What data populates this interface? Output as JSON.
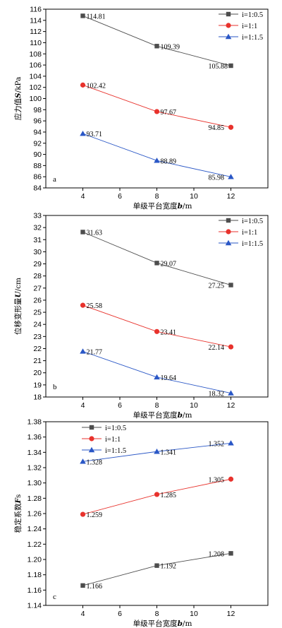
{
  "colors": {
    "s1": "#4d4d4d",
    "s2": "#e8322c",
    "s3": "#2a57c6"
  },
  "chart_data": [
    {
      "type": "line",
      "panel": "a",
      "xlabel": "单级平台宽度b/m",
      "ylabel": "应力值S/kPa",
      "x": [
        4,
        8,
        12
      ],
      "xlim": [
        2,
        14
      ],
      "xticks": [
        4,
        6,
        8,
        10,
        12
      ],
      "ylim": [
        84,
        116
      ],
      "yticks": [
        84,
        86,
        88,
        90,
        92,
        94,
        96,
        98,
        100,
        102,
        104,
        106,
        108,
        110,
        112,
        114,
        116
      ],
      "ytick_decimals": 0,
      "legend_position": "top-right",
      "series": [
        {
          "name": "i=1:0.5",
          "values": [
            114.81,
            109.39,
            105.88
          ],
          "labels": [
            "114.81",
            "109.39",
            "105.88"
          ],
          "marker": "square"
        },
        {
          "name": "i=1:1",
          "values": [
            102.42,
            97.67,
            94.85
          ],
          "labels": [
            "102.42",
            "97.67",
            "94.85"
          ],
          "marker": "circle"
        },
        {
          "name": "i=1:1.5",
          "values": [
            93.71,
            88.89,
            85.98
          ],
          "labels": [
            "93.71",
            "88.89",
            "85.98"
          ],
          "marker": "triangle"
        }
      ]
    },
    {
      "type": "line",
      "panel": "b",
      "xlabel": "单级平台宽度b/m",
      "ylabel": "位移变形量U/cm",
      "x": [
        4,
        8,
        12
      ],
      "xlim": [
        2,
        14
      ],
      "xticks": [
        4,
        6,
        8,
        10,
        12
      ],
      "ylim": [
        18,
        33
      ],
      "yticks": [
        18,
        19,
        20,
        21,
        22,
        23,
        24,
        25,
        26,
        27,
        28,
        29,
        30,
        31,
        32,
        33
      ],
      "ytick_decimals": 0,
      "legend_position": "top-right",
      "series": [
        {
          "name": "i=1:0.5",
          "values": [
            31.63,
            29.07,
            27.25
          ],
          "labels": [
            "31.63",
            "29.07",
            "27.25"
          ],
          "marker": "square"
        },
        {
          "name": "i=1:1",
          "values": [
            25.58,
            23.41,
            22.14
          ],
          "labels": [
            "25.58",
            "23.41",
            "22.14"
          ],
          "marker": "circle"
        },
        {
          "name": "i=1:1.5",
          "values": [
            21.77,
            19.64,
            18.32
          ],
          "labels": [
            "21.77",
            "19.64",
            "18.32"
          ],
          "marker": "triangle"
        }
      ]
    },
    {
      "type": "line",
      "panel": "c",
      "xlabel": "单级平台宽度b/m",
      "ylabel": "稳定系数Fs",
      "x": [
        4,
        8,
        12
      ],
      "xlim": [
        2,
        14
      ],
      "xticks": [
        4,
        6,
        8,
        10,
        12
      ],
      "ylim": [
        1.14,
        1.38
      ],
      "yticks": [
        1.14,
        1.16,
        1.18,
        1.2,
        1.22,
        1.24,
        1.26,
        1.28,
        1.3,
        1.32,
        1.34,
        1.36,
        1.38
      ],
      "ytick_decimals": 2,
      "legend_position": "top-left",
      "series": [
        {
          "name": "i=1:0.5",
          "values": [
            1.166,
            1.192,
            1.208
          ],
          "labels": [
            "1.166",
            "1.192",
            "1.208"
          ],
          "marker": "square"
        },
        {
          "name": "i=1:1",
          "values": [
            1.259,
            1.285,
            1.305
          ],
          "labels": [
            "1.259",
            "1.285",
            "1.305"
          ],
          "marker": "circle"
        },
        {
          "name": "i=1:1.5",
          "values": [
            1.328,
            1.341,
            1.352
          ],
          "labels": [
            "1.328",
            "1.341",
            "1.352"
          ],
          "marker": "triangle"
        }
      ]
    }
  ]
}
